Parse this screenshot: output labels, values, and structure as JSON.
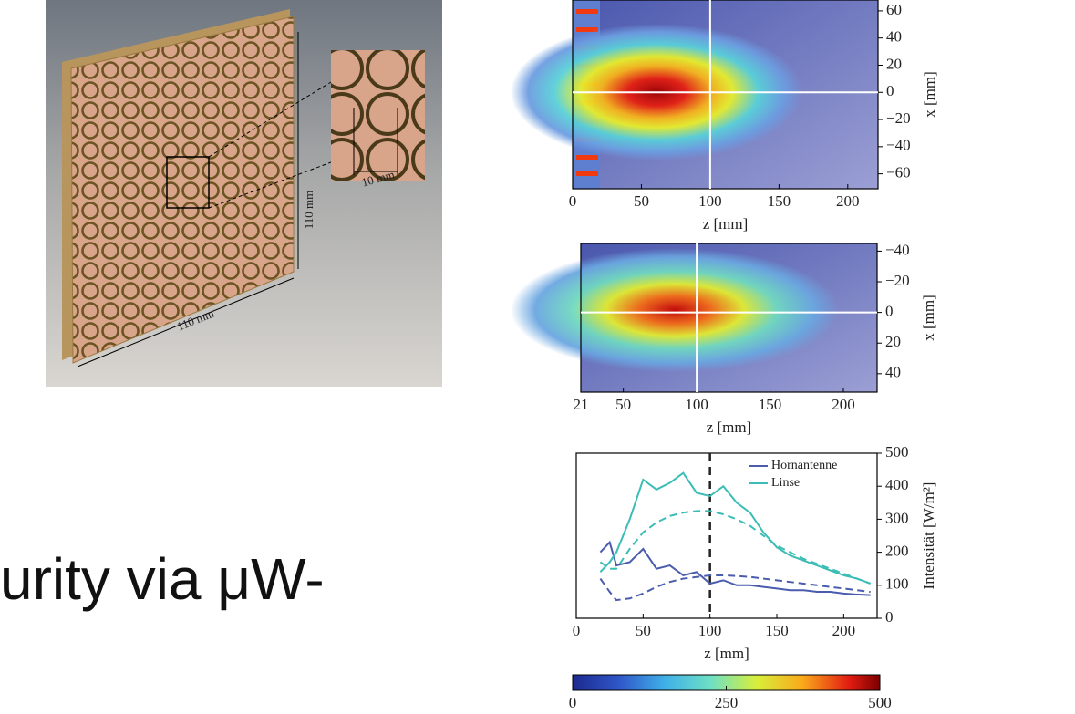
{
  "photo": {
    "labels": [
      "110 mm",
      "110 mm",
      "10 mm"
    ]
  },
  "slide_text": "urity via μW-",
  "chart_data": [
    {
      "type": "heatmap",
      "xlabel": "z [mm]",
      "ylabel": "x [mm]",
      "xlim": [
        0,
        222
      ],
      "xticks": [
        0,
        50,
        100,
        150,
        200
      ],
      "ylim": [
        -71,
        68
      ],
      "yticks": [
        60,
        40,
        20,
        0,
        {
          "value": -20,
          "label": "−20"
        },
        {
          "value": -40,
          "label": "−40"
        },
        {
          "value": -60,
          "label": "−60"
        }
      ]
    },
    {
      "type": "heatmap",
      "xlabel": "z [mm]",
      "ylabel": "x [mm]",
      "xlim": [
        21,
        223
      ],
      "xticks": [
        21,
        50,
        100,
        150,
        200
      ],
      "ylim": [
        52,
        -45
      ],
      "yticks": [
        {
          "value": -40,
          "label": "−40"
        },
        {
          "value": -20,
          "label": "−20"
        },
        0,
        20,
        40
      ]
    },
    {
      "type": "line",
      "xlabel": "z [mm]",
      "ylabel": "Intensität [W/m²]",
      "xlim": [
        0,
        225
      ],
      "xticks": [
        0,
        50,
        100,
        150,
        200
      ],
      "ylim": [
        0,
        500
      ],
      "yticks": [
        0,
        100,
        200,
        300,
        400,
        500
      ],
      "marker_x": 100,
      "x": [
        18,
        25,
        30,
        40,
        50,
        60,
        70,
        80,
        90,
        100,
        110,
        120,
        130,
        140,
        150,
        160,
        170,
        180,
        190,
        200,
        210,
        220
      ],
      "series": [
        {
          "name": "Hornantenne",
          "color": "#4a5cae",
          "dashed": false,
          "values": [
            200,
            230,
            160,
            170,
            210,
            150,
            160,
            130,
            140,
            105,
            115,
            100,
            100,
            95,
            90,
            85,
            85,
            80,
            80,
            75,
            72,
            70
          ]
        },
        {
          "name": "Linse",
          "color": "#3bbdb6",
          "dashed": false,
          "values": [
            140,
            170,
            200,
            300,
            420,
            390,
            410,
            440,
            380,
            370,
            400,
            350,
            320,
            260,
            215,
            190,
            175,
            160,
            145,
            130,
            120,
            105
          ]
        },
        {
          "color": "#4a5cae",
          "dashed": true,
          "values": [
            120,
            80,
            55,
            60,
            75,
            95,
            110,
            120,
            125,
            130,
            130,
            128,
            125,
            120,
            115,
            110,
            105,
            100,
            95,
            90,
            85,
            80
          ]
        },
        {
          "color": "#3bbdb6",
          "dashed": true,
          "values": [
            170,
            150,
            150,
            210,
            260,
            290,
            310,
            320,
            325,
            325,
            315,
            300,
            280,
            250,
            220,
            200,
            180,
            165,
            150,
            135,
            120,
            105
          ]
        }
      ]
    },
    {
      "type": "colorbar",
      "xlim": [
        0,
        500
      ],
      "xticks": [
        0,
        250,
        500
      ]
    }
  ]
}
